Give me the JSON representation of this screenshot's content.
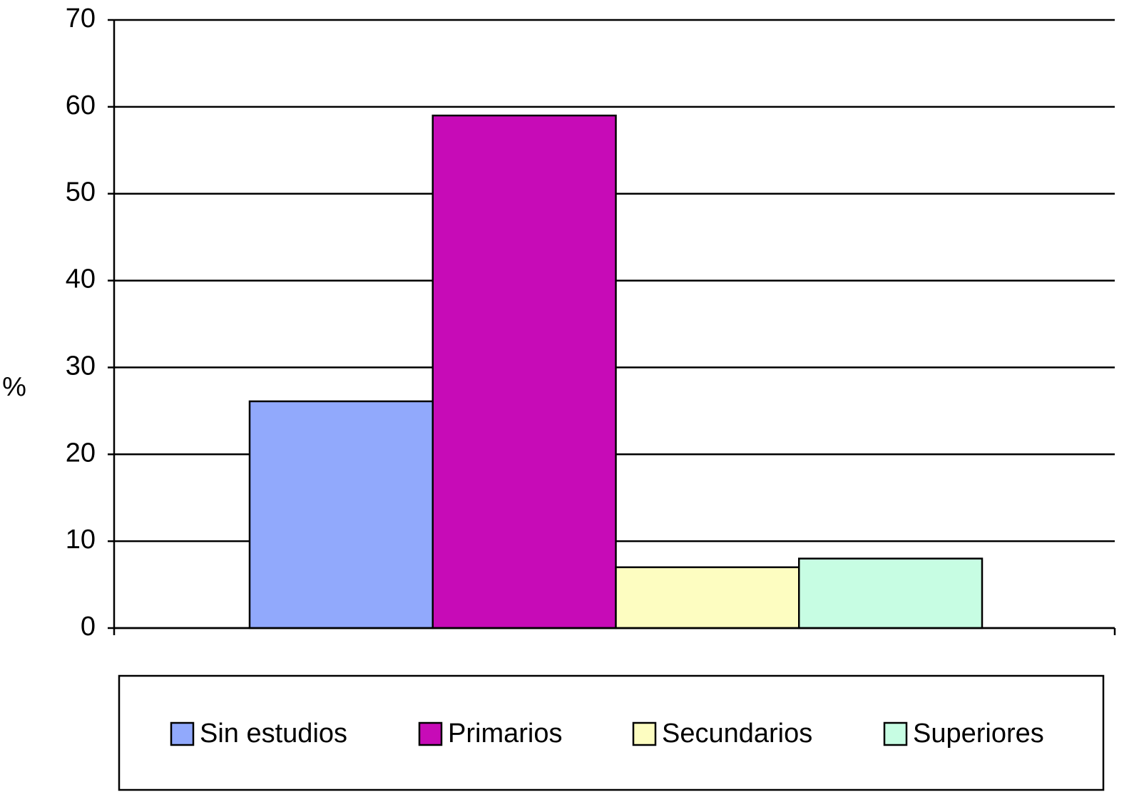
{
  "chart_data": {
    "type": "bar",
    "ylabel": "%",
    "categories": [
      null
    ],
    "series": [
      {
        "name": "Sin estudios",
        "color": "#91a9fc",
        "values": [
          26.1
        ]
      },
      {
        "name": "Primarios",
        "color": "#c70bb7",
        "values": [
          59
        ]
      },
      {
        "name": "Secundarios",
        "color": "#fdfdc1",
        "values": [
          7
        ]
      },
      {
        "name": "Superiores",
        "color": "#c7fde3",
        "values": [
          8
        ]
      }
    ],
    "ylim": [
      0,
      70
    ],
    "yticks": [
      0,
      10,
      20,
      30,
      40,
      50,
      60,
      70
    ],
    "grid": true,
    "legend": "bottom"
  }
}
